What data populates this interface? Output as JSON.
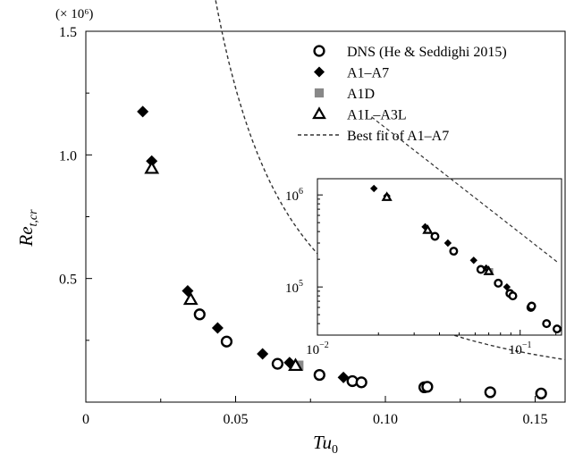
{
  "chart_data": [
    {
      "type": "scatter",
      "x_label": "Tu",
      "x_label_sub": "0",
      "y_label": "Re",
      "y_label_sub": "t,cr",
      "y_multiplier": "(× 10⁶)",
      "xlim": [
        0,
        0.16
      ],
      "ylim": [
        0,
        1.5
      ],
      "x_ticks": [
        {
          "value": 0,
          "label": "0"
        },
        {
          "value": 0.05,
          "label": "0.05"
        },
        {
          "value": 0.1,
          "label": "0.10"
        },
        {
          "value": 0.15,
          "label": "0.15"
        }
      ],
      "y_ticks": [
        {
          "value": 0.5,
          "label": "0.5"
        },
        {
          "value": 1.0,
          "label": "1.0"
        },
        {
          "value": 1.5,
          "label": "1.5"
        }
      ],
      "legend_position": "top-right",
      "series": [
        {
          "name": "DNS (He & Seddighi 2015)",
          "marker": "open-circle",
          "color": "#000000",
          "points": [
            [
              0.038,
              0.355
            ],
            [
              0.047,
              0.245
            ],
            [
              0.064,
              0.155
            ],
            [
              0.078,
              0.11
            ],
            [
              0.089,
              0.085
            ],
            [
              0.092,
              0.08
            ],
            [
              0.113,
              0.06
            ],
            [
              0.114,
              0.062
            ],
            [
              0.135,
              0.04
            ],
            [
              0.152,
              0.035
            ]
          ]
        },
        {
          "name": "A1–A7",
          "marker": "filled-diamond",
          "color": "#000000",
          "points": [
            [
              0.019,
              1.175
            ],
            [
              0.022,
              0.975
            ],
            [
              0.034,
              0.45
            ],
            [
              0.044,
              0.3
            ],
            [
              0.059,
              0.195
            ],
            [
              0.068,
              0.16
            ],
            [
              0.086,
              0.1
            ]
          ]
        },
        {
          "name": "A1D",
          "marker": "filled-square",
          "color": "#888888",
          "points": [
            [
              0.071,
              0.148
            ]
          ]
        },
        {
          "name": "A1L–A3L",
          "marker": "open-triangle",
          "color": "#000000",
          "points": [
            [
              0.022,
              0.945
            ],
            [
              0.035,
              0.415
            ],
            [
              0.07,
              0.148
            ]
          ]
        },
        {
          "name": "Best fit of A1–A7",
          "marker": "dashed-line",
          "color": "#333333",
          "x_range": [
            0.0185,
            0.16
          ],
          "fit": {
            "form": "power",
            "a": 7350,
            "b": -1.72
          }
        }
      ]
    },
    {
      "type": "scatter",
      "inset": true,
      "x_scale": "log",
      "y_scale": "log",
      "xlim": [
        0.01,
        0.16
      ],
      "ylim": [
        30000,
        1500000
      ],
      "x_ticks": [
        {
          "value": 0.01,
          "label": "10",
          "sup": "−2"
        },
        {
          "value": 0.1,
          "label": "10",
          "sup": "−1"
        }
      ],
      "y_ticks": [
        {
          "value": 100000,
          "label": "10",
          "sup": "5"
        },
        {
          "value": 1000000,
          "label": "10",
          "sup": "6"
        }
      ],
      "series_ref": "same as main chart"
    }
  ]
}
